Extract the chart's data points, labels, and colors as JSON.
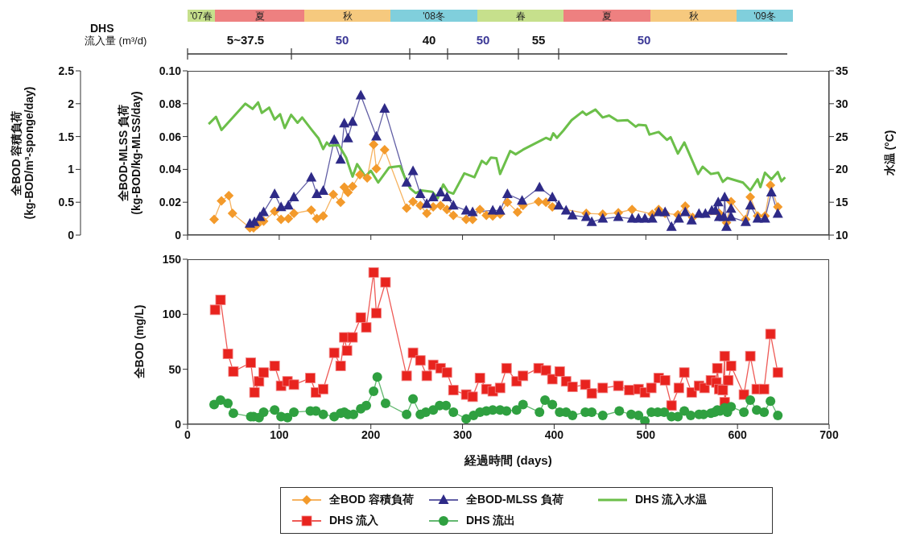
{
  "chart_data": [
    {
      "type": "other",
      "annotations": [
        "'07春",
        "夏",
        "秋",
        "'08冬",
        "春",
        "夏",
        "秋",
        "'09冬"
      ]
    },
    {
      "type": "other",
      "title": "DHS\n流入量 (m³/d)",
      "annotations": [
        "5~37.5",
        "50",
        "40",
        "50",
        "55",
        "50"
      ]
    },
    {
      "type": "line",
      "ylabel": "全BOD 容積負荷\n(kg-BOD/m³-sponge/day)",
      "y2label": "全BOD-MLSS 負荷\n(kg-BOD/kg-MLSS/day)",
      "y3label": "水温 (°C)",
      "xlim": [
        0,
        700
      ],
      "xticks": [
        0,
        100,
        200,
        300,
        400,
        500,
        600,
        700
      ],
      "ylim": [
        0,
        2.5
      ],
      "yticks": [
        0,
        0.5,
        1,
        1.5,
        2,
        2.5
      ],
      "y2lim": [
        0,
        0.1
      ],
      "y2ticks": [
        0,
        0.02,
        0.04,
        0.06,
        0.08,
        {
          "value": 0.1,
          "label": "0.10"
        }
      ],
      "y3lim": [
        10,
        35
      ],
      "y3ticks": [
        10,
        15,
        20,
        25,
        30,
        35
      ],
      "tick_labels": "y",
      "legend": "bottom",
      "series": [
        {
          "name": "全BOD 容積負荷",
          "color": "#f39a2b",
          "marker": "diamond",
          "axis": "y",
          "x": [
            29,
            37,
            45,
            49,
            68,
            72,
            76,
            83,
            95,
            102,
            110,
            116,
            135,
            141,
            148,
            159,
            167,
            171,
            175,
            180,
            188,
            196,
            203,
            206,
            215,
            239,
            246,
            254,
            261,
            268,
            276,
            283,
            290,
            304,
            311,
            319,
            326,
            333,
            341,
            349,
            360,
            366,
            383,
            391,
            398,
            435,
            453,
            470,
            485,
            507,
            514,
            521,
            535,
            543,
            551,
            580,
            588,
            593,
            609,
            614,
            622,
            630,
            636,
            644
          ],
          "values": [
            0.24,
            0.52,
            0.6,
            0.33,
            0.11,
            0.11,
            0.16,
            0.21,
            0.36,
            0.24,
            0.25,
            0.33,
            0.38,
            0.25,
            0.29,
            0.62,
            0.5,
            0.73,
            0.65,
            0.74,
            0.92,
            0.87,
            1.38,
            1.01,
            1.3,
            0.41,
            0.51,
            0.45,
            0.33,
            0.43,
            0.45,
            0.39,
            0.3,
            0.24,
            0.24,
            0.39,
            0.3,
            0.29,
            0.32,
            0.5,
            0.35,
            0.45,
            0.51,
            0.5,
            0.43,
            0.33,
            0.32,
            0.34,
            0.39,
            0.32,
            0.39,
            0.33,
            0.31,
            0.44,
            0.27,
            0.33,
            0.19,
            0.51,
            0.24,
            0.58,
            0.29,
            0.29,
            0.76,
            0.43
          ]
        },
        {
          "name": "全BOD-MLSS 負荷",
          "color": "#2e2a87",
          "marker": "triangle",
          "axis": "y2",
          "x": [
            68,
            73,
            79,
            83,
            95,
            102,
            110,
            116,
            135,
            141,
            148,
            160,
            167,
            171,
            175,
            180,
            189,
            206,
            215,
            239,
            246,
            254,
            261,
            268,
            276,
            283,
            290,
            304,
            311,
            333,
            341,
            349,
            365,
            384,
            398,
            405,
            413,
            420,
            435,
            441,
            453,
            470,
            485,
            492,
            499,
            507,
            514,
            521,
            528,
            536,
            543,
            550,
            558,
            565,
            572,
            576,
            579,
            580,
            585,
            586,
            588,
            593,
            593,
            609,
            614,
            622,
            630,
            637,
            644
          ],
          "values": [
            0.007,
            0.008,
            0.011,
            0.014,
            0.025,
            0.017,
            0.018,
            0.023,
            0.035,
            0.025,
            0.027,
            0.058,
            0.046,
            0.068,
            0.059,
            0.069,
            0.085,
            0.06,
            0.077,
            0.032,
            0.039,
            0.025,
            0.019,
            0.023,
            0.026,
            0.023,
            0.018,
            0.015,
            0.014,
            0.015,
            0.015,
            0.025,
            0.021,
            0.029,
            0.023,
            0.018,
            0.015,
            0.012,
            0.011,
            0.008,
            0.01,
            0.011,
            0.01,
            0.01,
            0.01,
            0.01,
            0.014,
            0.014,
            0.005,
            0.01,
            0.014,
            0.009,
            0.013,
            0.013,
            0.015,
            0.015,
            0.02,
            0.011,
            0.011,
            0.023,
            0.005,
            0.016,
            0.011,
            0.008,
            0.018,
            0.01,
            0.01,
            0.026,
            0.013
          ]
        },
        {
          "name": "DHS 流入水温",
          "color": "#6cbf4a",
          "marker": "none",
          "axis": "y3",
          "x": [
            23,
            31,
            37,
            63,
            71,
            77,
            81,
            89,
            95,
            101,
            106,
            113,
            120,
            125,
            135,
            143,
            148,
            152,
            155,
            165,
            173,
            180,
            185,
            194,
            200,
            208,
            220,
            232,
            239,
            243,
            249,
            255,
            267,
            273,
            279,
            284,
            290,
            302,
            313,
            321,
            326,
            331,
            337,
            341,
            352,
            358,
            366,
            387,
            391,
            396,
            399,
            403,
            410,
            419,
            431,
            435,
            445,
            453,
            460,
            469,
            480,
            489,
            492,
            500,
            504,
            514,
            523,
            527,
            535,
            542,
            557,
            562,
            571,
            579,
            584,
            589,
            606,
            614,
            622,
            625,
            630,
            637,
            644,
            648,
            652
          ],
          "values": [
            26.9,
            28,
            26,
            30,
            29.2,
            30.2,
            28.6,
            29.4,
            27.6,
            28.4,
            26.3,
            28.3,
            27.1,
            27.9,
            26.1,
            24.7,
            23.1,
            24.1,
            23.6,
            23.7,
            21.8,
            18.9,
            20.8,
            18.9,
            19.8,
            18,
            20.3,
            20.5,
            18.1,
            17.1,
            16.4,
            16.8,
            16.6,
            15.6,
            17.7,
            16.6,
            16.3,
            19.4,
            18.8,
            21.3,
            20.8,
            21.8,
            21.7,
            19.3,
            22.8,
            22.3,
            23,
            24.5,
            24.8,
            24.5,
            25.5,
            24.8,
            25.9,
            27.5,
            28.8,
            28.3,
            29.1,
            27.9,
            28.2,
            27.4,
            27.5,
            26.5,
            26.8,
            26.7,
            25.3,
            25.7,
            24.5,
            24.9,
            22.4,
            24.1,
            19.3,
            20.4,
            19.3,
            19.5,
            18.1,
            18.7,
            18,
            16.8,
            18.5,
            17.3,
            19.5,
            18.5,
            19.6,
            18.2,
            18.8
          ]
        }
      ]
    },
    {
      "type": "line",
      "ylabel": "全BOD (mg/L)",
      "xlabel": "経過時間 (days)",
      "xlim": [
        0,
        700
      ],
      "xticks": [
        0,
        100,
        200,
        300,
        400,
        500,
        600,
        700
      ],
      "ylim": [
        0,
        150
      ],
      "yticks": [
        0,
        50,
        100,
        150
      ],
      "legend": "bottom",
      "series": [
        {
          "name": "DHS 流入",
          "color": "#e8231e",
          "marker": "square",
          "x": [
            30,
            36,
            44,
            50,
            69,
            73,
            78,
            83,
            95,
            102,
            109,
            116,
            134,
            140,
            148,
            160,
            167,
            171,
            174,
            180,
            189,
            195,
            203,
            206,
            216,
            239,
            246,
            254,
            261,
            268,
            276,
            283,
            290,
            304,
            311,
            319,
            326,
            333,
            341,
            348,
            359,
            366,
            383,
            391,
            398,
            406,
            413,
            420,
            434,
            441,
            453,
            470,
            482,
            492,
            499,
            506,
            514,
            521,
            528,
            536,
            542,
            550,
            558,
            564,
            571,
            577,
            578,
            580,
            584,
            586,
            586,
            590,
            593,
            607,
            614,
            621,
            629,
            636,
            644
          ],
          "values": [
            104,
            113,
            64,
            48,
            56,
            29,
            39,
            47,
            53,
            35,
            39,
            36,
            42,
            29,
            32,
            65,
            53,
            79,
            67,
            79,
            97,
            88,
            138,
            101,
            129,
            44,
            65,
            58,
            44,
            54,
            51,
            47,
            31,
            27,
            25,
            42,
            32,
            30,
            33,
            51,
            39,
            44,
            51,
            49,
            41,
            48,
            39,
            34,
            36,
            28,
            33,
            35,
            31,
            32,
            29,
            33,
            42,
            40,
            17,
            33,
            47,
            29,
            35,
            33,
            40,
            38,
            51,
            32,
            31,
            62,
            20,
            40,
            53,
            27,
            62,
            32,
            32,
            82,
            47
          ]
        },
        {
          "name": "DHS 流出",
          "color": "#2fa040",
          "marker": "circle",
          "x": [
            29,
            36,
            44,
            50,
            69,
            72,
            78,
            83,
            95,
            102,
            109,
            116,
            134,
            140,
            148,
            160,
            167,
            171,
            175,
            181,
            189,
            195,
            203,
            207,
            216,
            239,
            246,
            254,
            260,
            268,
            275,
            282,
            290,
            304,
            312,
            319,
            326,
            333,
            341,
            348,
            359,
            366,
            384,
            390,
            398,
            406,
            413,
            420,
            434,
            441,
            453,
            471,
            484,
            492,
            499,
            506,
            513,
            520,
            528,
            535,
            542,
            549,
            558,
            563,
            571,
            575,
            578,
            581,
            586,
            589,
            593,
            607,
            614,
            621,
            629,
            636,
            644
          ],
          "values": [
            18,
            22,
            19,
            10,
            7,
            7,
            6,
            11,
            13,
            7,
            6,
            11,
            12,
            12,
            9,
            7,
            10,
            11,
            9,
            9,
            14,
            17,
            30,
            43,
            19,
            9,
            23,
            9,
            11,
            13,
            17,
            17,
            11,
            5,
            8,
            11,
            12,
            13,
            13,
            12,
            13,
            18,
            11,
            22,
            18,
            11,
            11,
            8,
            11,
            11,
            8,
            12,
            9,
            8,
            3,
            11,
            11,
            11,
            7,
            7,
            12,
            8,
            9,
            9,
            10,
            11,
            13,
            12,
            15,
            11,
            16,
            11,
            22,
            13,
            11,
            21,
            8
          ]
        }
      ]
    }
  ]
}
